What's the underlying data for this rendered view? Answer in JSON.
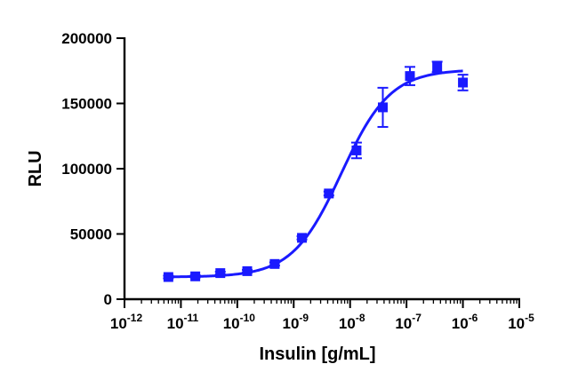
{
  "chart_data": {
    "type": "scatter",
    "title": "",
    "xlabel": "Insulin [g/mL]",
    "ylabel": "RLU",
    "xscale": "log",
    "xlim": [
      1e-12,
      1e-05
    ],
    "ylim": [
      0,
      200000
    ],
    "x_tick_values": [
      1e-12,
      1e-11,
      1e-10,
      1e-09,
      1e-08,
      1e-07,
      1e-06,
      1e-05
    ],
    "x_tick_labels": [
      {
        "base": "10",
        "exp": "-12"
      },
      {
        "base": "10",
        "exp": "-11"
      },
      {
        "base": "10",
        "exp": "-10"
      },
      {
        "base": "10",
        "exp": "-9"
      },
      {
        "base": "10",
        "exp": "-8"
      },
      {
        "base": "10",
        "exp": "-7"
      },
      {
        "base": "10",
        "exp": "-6"
      },
      {
        "base": "10",
        "exp": "-5"
      }
    ],
    "y_ticks": [
      0,
      50000,
      100000,
      150000,
      200000
    ],
    "y_tick_labels": [
      "0",
      "50000",
      "100000",
      "150000",
      "200000"
    ],
    "grid": false,
    "marker": "square",
    "color": "#1a1aff",
    "series": [
      {
        "x": [
          6e-12,
          1.8e-11,
          5e-11,
          1.5e-10,
          4.6e-10,
          1.4e-09,
          4.2e-09,
          1.3e-08,
          3.8e-08,
          1.15e-07,
          3.5e-07,
          1e-06
        ],
        "y": [
          17000,
          17500,
          20000,
          21500,
          27000,
          47000,
          81000,
          114000,
          147000,
          171000,
          178000,
          166000
        ],
        "yerr": [
          1000,
          800,
          1000,
          1000,
          1200,
          1200,
          1500,
          6000,
          15000,
          7000,
          4000,
          6000
        ]
      }
    ],
    "fit": {
      "type": "four-parameter logistic",
      "bottom": 17000,
      "top": 176000,
      "ec50": 7e-09,
      "hill": 1.0,
      "x_range": [
        6e-12,
        1e-06
      ]
    }
  }
}
